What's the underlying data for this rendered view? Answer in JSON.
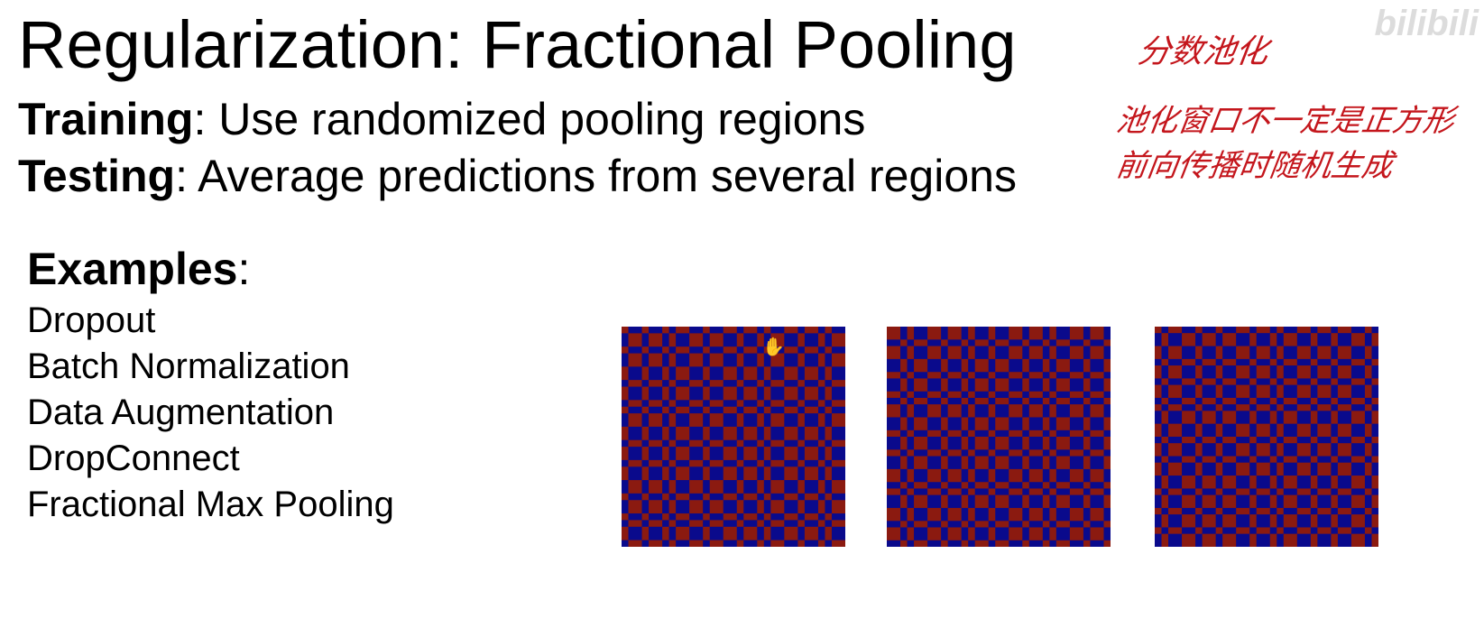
{
  "slide": {
    "title": "Regularization: Fractional Pooling",
    "training": {
      "label": "Training",
      "text": ": Use randomized pooling regions"
    },
    "testing": {
      "label": "Testing",
      "text": ": Average predictions from several regions"
    },
    "examples": {
      "label": "Examples",
      "colon": ":",
      "items": [
        "Dropout",
        "Batch Normalization",
        "Data Augmentation",
        "DropConnect",
        "Fractional Max Pooling"
      ]
    }
  },
  "annotations": {
    "line1": "分数池化",
    "line2": "池化窗口不一定是正方形",
    "line3": "前向传播时随机生成"
  },
  "watermark": "bilibili",
  "colors": {
    "red": "#8b1a10",
    "blue": "#0a0a8c",
    "annotation": "#c4161c"
  },
  "pooling_grids": [
    {
      "cols": [
        1,
        2,
        1,
        2,
        1,
        1,
        2,
        2,
        1,
        2,
        2,
        1,
        2,
        1,
        1,
        2,
        2,
        1,
        2,
        1,
        1,
        2
      ],
      "rows": [
        1,
        2,
        1,
        2,
        2,
        1,
        2,
        1,
        1,
        2,
        2,
        1,
        2,
        1,
        2,
        2,
        1,
        2,
        1,
        1,
        2,
        1
      ]
    },
    {
      "cols": [
        2,
        1,
        1,
        2,
        2,
        1,
        2,
        1,
        1,
        2,
        1,
        2,
        2,
        1,
        2,
        1,
        1,
        2,
        2,
        1,
        2,
        1
      ],
      "rows": [
        2,
        1,
        2,
        2,
        1,
        2,
        1,
        1,
        2,
        2,
        1,
        2,
        1,
        2,
        2,
        1,
        1,
        2,
        2,
        1,
        2,
        1
      ]
    },
    {
      "cols": [
        1,
        1,
        2,
        2,
        1,
        2,
        1,
        2,
        2,
        1,
        2,
        1,
        1,
        2,
        2,
        1,
        2,
        1,
        2,
        2,
        1,
        1
      ],
      "rows": [
        1,
        2,
        2,
        1,
        2,
        1,
        2,
        1,
        1,
        2,
        2,
        1,
        2,
        1,
        2,
        2,
        1,
        2,
        1,
        2,
        1,
        2
      ]
    }
  ]
}
